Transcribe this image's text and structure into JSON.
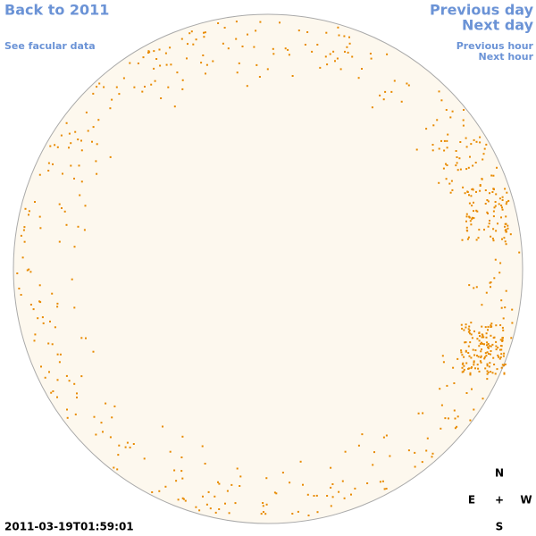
{
  "nav": {
    "back": "Back to 2011",
    "facular": "See facular data",
    "previous_day": "Previous day",
    "next_day": "Next day",
    "previous_hour": "Previous hour",
    "next_hour": "Next hour"
  },
  "compass": {
    "north": "N",
    "east": "E",
    "center": "+",
    "west": "W",
    "south": "S"
  },
  "timestamp": "2011-03-19T01:59:01"
}
